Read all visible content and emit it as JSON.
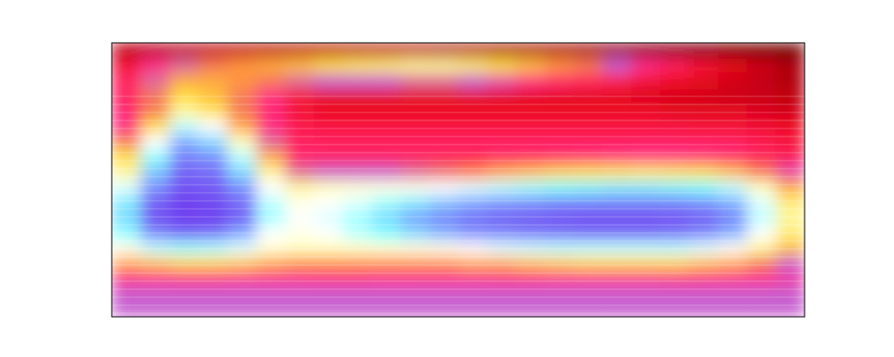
{
  "chart_data": {
    "type": "heatmap",
    "tick_labels": false,
    "cells": [
      [
        0.12,
        0.12,
        0.12,
        0.13,
        0.13,
        0.12,
        0.12,
        0.12,
        0.12,
        0.12,
        0.12,
        0.11,
        0.11,
        0.1,
        0.1,
        0.1,
        0.09,
        0.08,
        0.07,
        0.06,
        0.05,
        0.04,
        0.03,
        0.02
      ],
      [
        0.25,
        0.35,
        0.42,
        0.45,
        0.48,
        0.5,
        0.52,
        0.55,
        0.57,
        0.58,
        0.6,
        0.6,
        0.58,
        0.55,
        0.52,
        0.48,
        0.45,
        0.4,
        0.35,
        0.3,
        0.25,
        0.2,
        0.15,
        0.1
      ],
      [
        0.3,
        0.42,
        0.5,
        0.5,
        0.48,
        0.45,
        0.42,
        0.4,
        0.4,
        0.4,
        0.42,
        0.42,
        0.4,
        0.38,
        0.35,
        0.32,
        0.3,
        0.28,
        0.25,
        0.22,
        0.2,
        0.16,
        0.13,
        0.1
      ],
      [
        0.3,
        0.45,
        0.55,
        0.52,
        0.45,
        0.35,
        0.25,
        0.2,
        0.2,
        0.2,
        0.2,
        0.2,
        0.2,
        0.2,
        0.2,
        0.2,
        0.2,
        0.2,
        0.18,
        0.17,
        0.16,
        0.15,
        0.14,
        0.12
      ],
      [
        0.32,
        0.45,
        0.6,
        0.56,
        0.45,
        0.32,
        0.25,
        0.22,
        0.22,
        0.22,
        0.22,
        0.22,
        0.22,
        0.22,
        0.22,
        0.22,
        0.22,
        0.22,
        0.22,
        0.2,
        0.2,
        0.2,
        0.18,
        0.16
      ],
      [
        0.35,
        0.55,
        0.72,
        0.68,
        0.5,
        0.35,
        0.28,
        0.26,
        0.26,
        0.26,
        0.26,
        0.26,
        0.26,
        0.26,
        0.26,
        0.26,
        0.26,
        0.26,
        0.26,
        0.26,
        0.25,
        0.25,
        0.24,
        0.22
      ],
      [
        0.45,
        0.68,
        0.85,
        0.8,
        0.62,
        0.42,
        0.3,
        0.3,
        0.3,
        0.3,
        0.3,
        0.3,
        0.3,
        0.3,
        0.3,
        0.3,
        0.3,
        0.3,
        0.3,
        0.3,
        0.3,
        0.3,
        0.28,
        0.26
      ],
      [
        0.55,
        0.75,
        0.9,
        0.88,
        0.72,
        0.5,
        0.32,
        0.3,
        0.3,
        0.3,
        0.3,
        0.3,
        0.3,
        0.32,
        0.32,
        0.33,
        0.34,
        0.35,
        0.36,
        0.36,
        0.35,
        0.33,
        0.3,
        0.28
      ],
      [
        0.6,
        0.82,
        0.95,
        0.93,
        0.8,
        0.6,
        0.42,
        0.4,
        0.4,
        0.4,
        0.42,
        0.44,
        0.46,
        0.5,
        0.52,
        0.54,
        0.55,
        0.56,
        0.57,
        0.56,
        0.55,
        0.52,
        0.45,
        0.38
      ],
      [
        0.7,
        0.88,
        0.97,
        0.96,
        0.88,
        0.68,
        0.6,
        0.62,
        0.64,
        0.65,
        0.66,
        0.68,
        0.7,
        0.72,
        0.74,
        0.76,
        0.77,
        0.78,
        0.78,
        0.77,
        0.76,
        0.72,
        0.62,
        0.5
      ],
      [
        0.78,
        0.95,
        1.0,
        0.98,
        0.93,
        0.72,
        0.66,
        0.68,
        0.7,
        0.74,
        0.78,
        0.82,
        0.85,
        0.87,
        0.88,
        0.9,
        0.9,
        0.9,
        0.9,
        0.9,
        0.88,
        0.84,
        0.7,
        0.58
      ],
      [
        0.8,
        0.97,
        1.0,
        1.0,
        0.95,
        0.74,
        0.68,
        0.7,
        0.74,
        0.8,
        0.86,
        0.9,
        0.93,
        0.95,
        0.96,
        0.97,
        0.98,
        0.98,
        0.98,
        0.97,
        0.95,
        0.9,
        0.72,
        0.6
      ],
      [
        0.75,
        0.9,
        0.95,
        0.93,
        0.85,
        0.68,
        0.66,
        0.68,
        0.72,
        0.76,
        0.8,
        0.84,
        0.88,
        0.9,
        0.92,
        0.93,
        0.94,
        0.94,
        0.94,
        0.93,
        0.9,
        0.84,
        0.68,
        0.58
      ],
      [
        0.66,
        0.72,
        0.74,
        0.73,
        0.7,
        0.64,
        0.62,
        0.62,
        0.63,
        0.64,
        0.65,
        0.66,
        0.68,
        0.7,
        0.71,
        0.72,
        0.72,
        0.72,
        0.72,
        0.72,
        0.7,
        0.67,
        0.6,
        0.52
      ],
      [
        0.5,
        0.52,
        0.54,
        0.54,
        0.53,
        0.5,
        0.48,
        0.48,
        0.48,
        0.48,
        0.48,
        0.48,
        0.5,
        0.5,
        0.52,
        0.53,
        0.54,
        0.54,
        0.54,
        0.54,
        0.52,
        0.5,
        0.45,
        0.4
      ],
      [
        0.36,
        0.36,
        0.35,
        0.35,
        0.36,
        0.36,
        0.36,
        0.35,
        0.35,
        0.36,
        0.36,
        0.36,
        0.36,
        0.35,
        0.35,
        0.36,
        0.36,
        0.36,
        0.36,
        0.35,
        0.35,
        0.36,
        0.36,
        0.37
      ],
      [
        0.4,
        0.4,
        0.4,
        0.4,
        0.4,
        0.4,
        0.4,
        0.4,
        0.4,
        0.4,
        0.4,
        0.4,
        0.4,
        0.4,
        0.4,
        0.4,
        0.4,
        0.4,
        0.4,
        0.4,
        0.4,
        0.4,
        0.4,
        0.4
      ],
      [
        0.4,
        0.4,
        0.4,
        0.4,
        0.4,
        0.4,
        0.4,
        0.4,
        0.4,
        0.4,
        0.4,
        0.4,
        0.4,
        0.4,
        0.4,
        0.4,
        0.4,
        0.4,
        0.4,
        0.4,
        0.4,
        0.4,
        0.4,
        0.4
      ]
    ]
  }
}
